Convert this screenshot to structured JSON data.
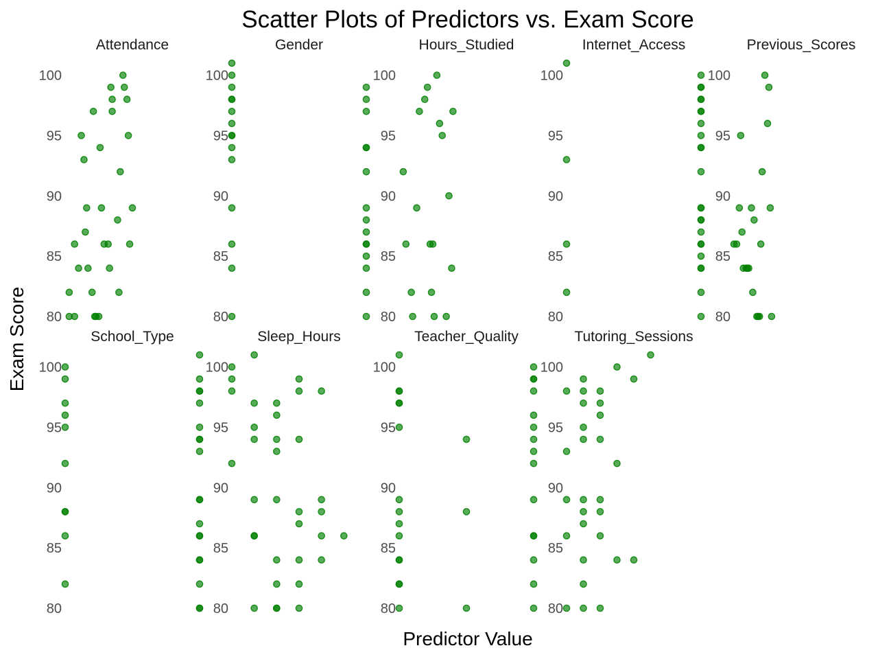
{
  "chart_data": {
    "type": "scatter",
    "title": "Scatter Plots of Predictors vs. Exam Score",
    "xlabel": "Predictor Value",
    "ylabel": "Exam Score",
    "grid": false,
    "facet_layout": {
      "ncol": 5,
      "nrow": 2
    },
    "shared_y": {
      "ylim": [
        79,
        101.5
      ],
      "ticks": [
        80,
        85,
        90,
        95,
        100
      ]
    },
    "point_color": "#008000",
    "point_opacity": 0.65,
    "panels": [
      {
        "name": "Attendance",
        "xlim": [
          0,
          10
        ],
        "x": [
          0.3,
          0.3,
          0.7,
          0.7,
          1.0,
          1.2,
          1.4,
          1.5,
          1.6,
          1.7,
          2.0,
          2.1,
          2.2,
          2.3,
          2.5,
          2.6,
          2.7,
          2.9,
          3.2,
          3.3,
          3.4,
          3.5,
          3.5,
          3.9,
          4.0,
          4.1,
          4.3,
          4.4,
          4.6,
          4.7,
          4.8,
          5.0
        ],
        "y": [
          82,
          80,
          86,
          80,
          84,
          95,
          93,
          87,
          89,
          84,
          82,
          97,
          80,
          80,
          80,
          94,
          89,
          86,
          86,
          84,
          99,
          98,
          97,
          88,
          82,
          92,
          100,
          99,
          98,
          95,
          86,
          89
        ]
      },
      {
        "name": "Gender",
        "xlim": [
          0,
          1
        ],
        "x": [
          0,
          0,
          0,
          0,
          0,
          0,
          0,
          0,
          0,
          0,
          0,
          0,
          0,
          0,
          0,
          1,
          1,
          1,
          1,
          1,
          1,
          1,
          1,
          1,
          1,
          1,
          1,
          1,
          1,
          1
        ],
        "y": [
          101,
          100,
          99,
          98,
          97,
          96,
          95,
          94,
          93,
          89,
          86,
          84,
          80,
          98,
          95,
          99,
          98,
          97,
          94,
          92,
          89,
          88,
          87,
          86,
          85,
          84,
          82,
          80,
          94,
          86
        ]
      },
      {
        "name": "Hours_Studied",
        "xlim": [
          0,
          10
        ],
        "x": [
          0.3,
          0.5,
          0.9,
          1.0,
          1.3,
          1.5,
          1.9,
          2.1,
          2.3,
          2.4,
          2.5,
          2.6,
          2.8,
          3.0,
          3.2,
          3.5,
          3.7,
          3.9,
          4.0
        ],
        "y": [
          92,
          86,
          82,
          80,
          89,
          97,
          98,
          99,
          86,
          82,
          86,
          80,
          100,
          96,
          95,
          80,
          90,
          84,
          97
        ]
      },
      {
        "name": "Internet_Access",
        "xlim": [
          0,
          1
        ],
        "x": [
          0,
          0,
          0,
          0,
          1,
          1,
          1,
          1,
          1,
          1,
          1,
          1,
          1,
          1,
          1,
          1,
          1,
          1,
          1,
          1,
          1,
          1,
          1,
          1,
          1,
          1,
          1,
          1
        ],
        "y": [
          101,
          93,
          86,
          82,
          100,
          99,
          98,
          97,
          96,
          95,
          94,
          92,
          89,
          88,
          87,
          86,
          85,
          84,
          82,
          80,
          99,
          98,
          97,
          94,
          89,
          88,
          86,
          84
        ]
      },
      {
        "name": "Previous_Scores",
        "xlim": [
          0,
          10
        ],
        "x": [
          0.0,
          0.2,
          0.4,
          0.5,
          0.6,
          0.7,
          0.9,
          1.0,
          1.1,
          1.3,
          1.4,
          1.5,
          1.7,
          1.8,
          1.9,
          2.0,
          2.1,
          2.3,
          2.5,
          2.6,
          2.7,
          2.8
        ],
        "y": [
          86,
          86,
          89,
          95,
          87,
          84,
          84,
          84,
          84,
          89,
          82,
          88,
          80,
          80,
          80,
          86,
          92,
          100,
          96,
          99,
          89,
          80
        ]
      },
      {
        "name": "School_Type",
        "xlim": [
          0,
          1
        ],
        "x": [
          0,
          0,
          0,
          0,
          0,
          0,
          0,
          0,
          0,
          0,
          1,
          1,
          1,
          1,
          1,
          1,
          1,
          1,
          1,
          1,
          1,
          1,
          1,
          1,
          1,
          1,
          1,
          1,
          1
        ],
        "y": [
          100,
          99,
          97,
          96,
          95,
          92,
          88,
          86,
          82,
          88,
          101,
          99,
          98,
          97,
          95,
          94,
          93,
          89,
          87,
          86,
          84,
          82,
          80,
          98,
          94,
          89,
          86,
          84,
          80
        ]
      },
      {
        "name": "Sleep_Hours",
        "xlim": [
          4,
          10
        ],
        "x": [
          4,
          4,
          4,
          4,
          5,
          5,
          5,
          5,
          5,
          5,
          5,
          5,
          6,
          6,
          6,
          6,
          6,
          6,
          6,
          6,
          6,
          7,
          7,
          7,
          7,
          7,
          7,
          7,
          7,
          8,
          8,
          8,
          8,
          8,
          9
        ],
        "y": [
          100,
          99,
          98,
          92,
          86,
          80,
          101,
          97,
          95,
          94,
          89,
          86,
          82,
          80,
          97,
          96,
          94,
          93,
          89,
          84,
          80,
          99,
          98,
          94,
          88,
          87,
          82,
          80,
          84,
          98,
          89,
          88,
          86,
          84,
          86
        ]
      },
      {
        "name": "Teacher_Quality",
        "xlim": [
          0,
          2
        ],
        "x": [
          0,
          0,
          0,
          0,
          0,
          0,
          0,
          0,
          0,
          0,
          0,
          0,
          0,
          0,
          0,
          1,
          1,
          1,
          2,
          2,
          2,
          2,
          2,
          2,
          2,
          2,
          2,
          2,
          2,
          2,
          2,
          2,
          2
        ],
        "y": [
          101,
          98,
          97,
          95,
          89,
          88,
          87,
          86,
          84,
          82,
          80,
          98,
          97,
          84,
          82,
          94,
          88,
          80,
          100,
          99,
          98,
          96,
          95,
          94,
          93,
          92,
          89,
          86,
          84,
          82,
          80,
          99,
          86
        ]
      },
      {
        "name": "Tutoring_Sessions",
        "xlim": [
          0,
          8
        ],
        "x": [
          0,
          0,
          0,
          0,
          0,
          1,
          1,
          1,
          1,
          1,
          1,
          1,
          1,
          1,
          1,
          1,
          2,
          2,
          2,
          2,
          2,
          2,
          2,
          2,
          3,
          3,
          3,
          4,
          4,
          5
        ],
        "y": [
          98,
          93,
          89,
          86,
          80,
          99,
          98,
          97,
          95,
          94,
          89,
          88,
          87,
          84,
          82,
          80,
          98,
          97,
          96,
          94,
          89,
          88,
          86,
          80,
          100,
          92,
          84,
          99,
          84,
          101
        ]
      }
    ]
  }
}
